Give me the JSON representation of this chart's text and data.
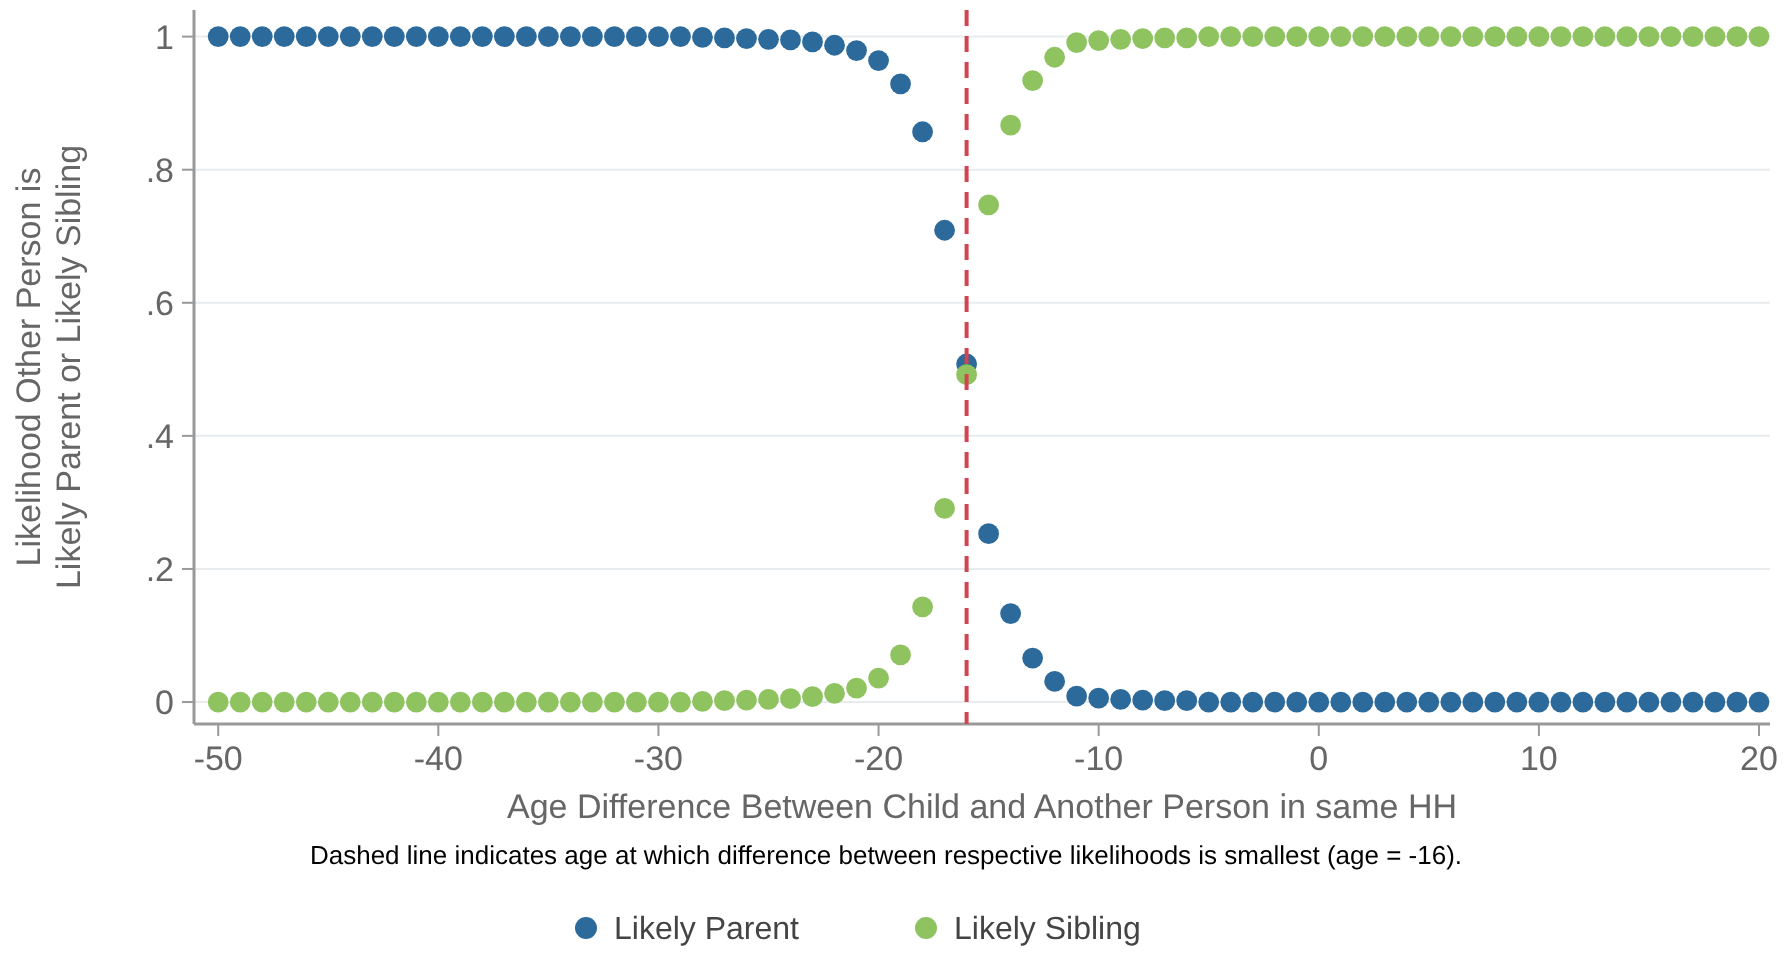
{
  "chart_data": {
    "type": "scatter",
    "xlabel": "Age Difference Between Child and Another Person in same HH",
    "ylabel": "Likelihood Other Person is\nLikely Parent or Likely Sibling",
    "x": [
      -50,
      -49,
      -48,
      -47,
      -46,
      -45,
      -44,
      -43,
      -42,
      -41,
      -40,
      -39,
      -38,
      -37,
      -36,
      -35,
      -34,
      -33,
      -32,
      -31,
      -30,
      -29,
      -28,
      -27,
      -26,
      -25,
      -24,
      -23,
      -22,
      -21,
      -20,
      -19,
      -18,
      -17,
      -16,
      -15,
      -14,
      -13,
      -12,
      -11,
      -10,
      -9,
      -8,
      -7,
      -6,
      -5,
      -4,
      -3,
      -2,
      -1,
      0,
      1,
      2,
      3,
      4,
      5,
      6,
      7,
      8,
      9,
      10,
      11,
      12,
      13,
      14,
      15,
      16,
      17,
      18,
      19,
      20
    ],
    "series": [
      {
        "name": "Likely Parent",
        "color": "#2b6a9b",
        "values": [
          1,
          1,
          1,
          1,
          1,
          1,
          1,
          1,
          1,
          1,
          1,
          1,
          1,
          1,
          1,
          1,
          1,
          1,
          1,
          1,
          1,
          1,
          0.999,
          0.998,
          0.997,
          0.996,
          0.995,
          0.992,
          0.987,
          0.979,
          0.964,
          0.929,
          0.857,
          0.709,
          0.508,
          0.253,
          0.133,
          0.066,
          0.031,
          0.009,
          0.006,
          0.004,
          0.003,
          0.002,
          0.002,
          0,
          0,
          0,
          0,
          0,
          0,
          0,
          0,
          0,
          0,
          0,
          0,
          0,
          0,
          0,
          0,
          0,
          0,
          0,
          0,
          0,
          0,
          0,
          0,
          0,
          0
        ]
      },
      {
        "name": "Likely Sibling",
        "color": "#8ec360",
        "values": [
          0,
          0,
          0,
          0,
          0,
          0,
          0,
          0,
          0,
          0,
          0,
          0,
          0,
          0,
          0,
          0,
          0,
          0,
          0,
          0,
          0,
          0,
          0.001,
          0.002,
          0.003,
          0.004,
          0.005,
          0.008,
          0.013,
          0.021,
          0.036,
          0.071,
          0.143,
          0.291,
          0.492,
          0.747,
          0.867,
          0.934,
          0.969,
          0.991,
          0.994,
          0.996,
          0.997,
          0.998,
          0.998,
          1,
          1,
          1,
          1,
          1,
          1,
          1,
          1,
          1,
          1,
          1,
          1,
          1,
          1,
          1,
          1,
          1,
          1,
          1,
          1,
          1,
          1,
          1,
          1,
          1,
          1
        ]
      }
    ],
    "xlim": [
      -51.1,
      20.5
    ],
    "xticks": [
      -50,
      -40,
      -30,
      -20,
      -10,
      0,
      10,
      20
    ],
    "ylim": [
      -0.033,
      1.04
    ],
    "yticks": [
      0,
      {
        "value": 0.2,
        "label": ".2"
      },
      {
        "value": 0.4,
        "label": ".4"
      },
      {
        "value": 0.6,
        "label": ".6"
      },
      {
        "value": 0.8,
        "label": ".8"
      },
      1
    ],
    "grid": "y",
    "marker": "circle",
    "legend": "bottom",
    "ref_lines": [
      {
        "axis": "x",
        "value": -16,
        "color": "#d0454f",
        "line_style": "dashed"
      }
    ],
    "annotations": [
      "Dashed line indicates age at which difference between respective likelihoods is smallest (age = -16)."
    ]
  }
}
